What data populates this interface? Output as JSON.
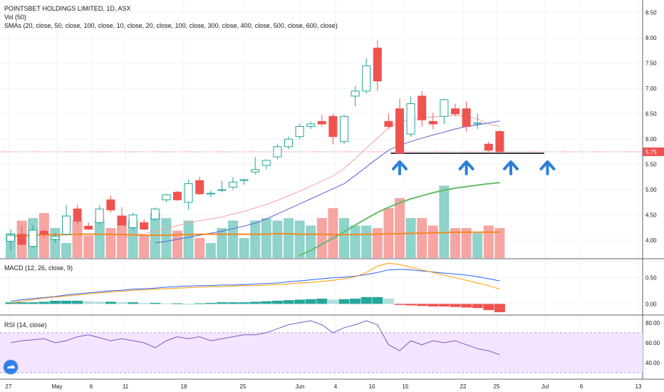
{
  "header": {
    "title": "POINTSBET HOLDINGS LIMITED, 1D, ASX",
    "vol_label": "Vol (50)",
    "sma_label": "SMAs (20, close, 50, close, 100, close, 10, close, 20, close, 100, close, 300, close, 400, close, 500, close, 600, close)"
  },
  "macd": {
    "label": "MACD (12, 26, close, 9)"
  },
  "rsi": {
    "label": "RSI (14, close)"
  },
  "colors": {
    "up": "#26a69a",
    "down": "#ef5350",
    "upVol": "#8fd3cb",
    "downVol": "#f6a5a3",
    "sma_pink": "#f4a0a0",
    "sma_blue": "#5b5fd6",
    "sma_green": "#66bb6a",
    "sma_orange": "#f5891f",
    "macd": "#2962ff",
    "signal": "#ff9800",
    "rsi": "#7e57c2",
    "arrow": "#2f7fd8",
    "support": "#131722"
  },
  "chart_data": [
    {
      "type": "candlestick",
      "title": "POINTSBET HOLDINGS LIMITED, 1D, ASX",
      "x_ticks": [
        "27",
        "May",
        "6",
        "11",
        "18",
        "25",
        "Jun",
        "4",
        "10",
        "15",
        "22",
        "25",
        "Jul",
        "6",
        "13"
      ],
      "y_ticks": [
        "4.00",
        "4.50",
        "5.00",
        "5.50",
        "6.00",
        "6.50",
        "7.00",
        "7.50",
        "8.00",
        "8.50"
      ],
      "ylim": [
        3.65,
        8.75
      ],
      "last_price_label": "5.75",
      "last_price": 5.75,
      "support_level": 5.72,
      "candles": [
        {
          "o": 3.98,
          "h": 4.22,
          "l": 3.8,
          "c": 4.1
        },
        {
          "o": 4.12,
          "h": 4.28,
          "l": 3.9,
          "c": 3.92
        },
        {
          "o": 3.88,
          "h": 4.3,
          "l": 3.85,
          "c": 4.2
        },
        {
          "o": 4.18,
          "h": 4.22,
          "l": 4.05,
          "c": 4.12
        },
        {
          "o": 4.02,
          "h": 4.15,
          "l": 3.95,
          "c": 4.08
        },
        {
          "o": 4.12,
          "h": 4.7,
          "l": 4.1,
          "c": 4.48
        },
        {
          "o": 4.62,
          "h": 4.7,
          "l": 4.3,
          "c": 4.38
        },
        {
          "o": 4.28,
          "h": 4.35,
          "l": 4.2,
          "c": 4.22
        },
        {
          "o": 4.35,
          "h": 4.7,
          "l": 4.3,
          "c": 4.62
        },
        {
          "o": 4.8,
          "h": 4.88,
          "l": 4.55,
          "c": 4.6
        },
        {
          "o": 4.48,
          "h": 4.65,
          "l": 4.3,
          "c": 4.3
        },
        {
          "o": 4.25,
          "h": 4.55,
          "l": 4.2,
          "c": 4.5
        },
        {
          "o": 4.35,
          "h": 4.42,
          "l": 4.2,
          "c": 4.22
        },
        {
          "o": 4.42,
          "h": 4.65,
          "l": 4.38,
          "c": 4.62
        },
        {
          "o": 4.8,
          "h": 4.92,
          "l": 4.75,
          "c": 4.9
        },
        {
          "o": 4.95,
          "h": 4.98,
          "l": 4.78,
          "c": 4.8
        },
        {
          "o": 4.75,
          "h": 5.2,
          "l": 4.6,
          "c": 5.12
        },
        {
          "o": 5.18,
          "h": 5.25,
          "l": 4.9,
          "c": 4.92
        },
        {
          "o": 4.92,
          "h": 4.98,
          "l": 4.85,
          "c": 4.93
        },
        {
          "o": 5.0,
          "h": 5.18,
          "l": 4.95,
          "c": 5.0
        },
        {
          "o": 5.05,
          "h": 5.25,
          "l": 5.0,
          "c": 5.15
        },
        {
          "o": 5.18,
          "h": 5.22,
          "l": 5.1,
          "c": 5.2
        },
        {
          "o": 5.35,
          "h": 5.65,
          "l": 5.3,
          "c": 5.4
        },
        {
          "o": 5.48,
          "h": 5.6,
          "l": 5.4,
          "c": 5.58
        },
        {
          "o": 5.65,
          "h": 5.9,
          "l": 5.6,
          "c": 5.85
        },
        {
          "o": 5.85,
          "h": 6.05,
          "l": 5.8,
          "c": 6.0
        },
        {
          "o": 6.05,
          "h": 6.3,
          "l": 6.0,
          "c": 6.25
        },
        {
          "o": 6.25,
          "h": 6.35,
          "l": 6.2,
          "c": 6.3
        },
        {
          "o": 6.35,
          "h": 6.48,
          "l": 6.25,
          "c": 6.3
        },
        {
          "o": 6.45,
          "h": 6.5,
          "l": 5.9,
          "c": 6.05
        },
        {
          "o": 5.95,
          "h": 6.48,
          "l": 5.9,
          "c": 6.45
        },
        {
          "o": 6.85,
          "h": 7.05,
          "l": 6.65,
          "c": 6.95
        },
        {
          "o": 6.95,
          "h": 7.6,
          "l": 6.9,
          "c": 7.45
        },
        {
          "o": 7.8,
          "h": 7.95,
          "l": 6.95,
          "c": 7.15
        },
        {
          "o": 6.35,
          "h": 6.5,
          "l": 6.2,
          "c": 6.25
        },
        {
          "o": 6.6,
          "h": 6.8,
          "l": 5.72,
          "c": 5.72
        },
        {
          "o": 6.1,
          "h": 6.85,
          "l": 6.05,
          "c": 6.7
        },
        {
          "o": 6.85,
          "h": 6.95,
          "l": 6.25,
          "c": 6.38
        },
        {
          "o": 6.35,
          "h": 6.52,
          "l": 6.2,
          "c": 6.3
        },
        {
          "o": 6.45,
          "h": 6.8,
          "l": 6.3,
          "c": 6.78
        },
        {
          "o": 6.6,
          "h": 6.7,
          "l": 6.45,
          "c": 6.5
        },
        {
          "o": 6.6,
          "h": 6.75,
          "l": 6.15,
          "c": 6.25
        },
        {
          "o": 6.3,
          "h": 6.5,
          "l": 6.2,
          "c": 6.32
        },
        {
          "o": 5.9,
          "h": 5.95,
          "l": 5.72,
          "c": 5.78
        },
        {
          "o": 6.15,
          "h": 6.18,
          "l": 5.72,
          "c": 5.75
        }
      ],
      "volume": [
        20,
        30,
        32,
        36,
        24,
        12,
        30,
        18,
        30,
        24,
        34,
        30,
        18,
        36,
        32,
        22,
        30,
        16,
        12,
        24,
        30,
        16,
        30,
        32,
        30,
        32,
        30,
        26,
        32,
        40,
        32,
        26,
        26,
        24,
        40,
        48,
        32,
        32,
        26,
        58,
        24,
        24,
        20,
        26,
        24
      ],
      "sma_series": [
        {
          "values": [
            null,
            null,
            null,
            null,
            null,
            null,
            null,
            null,
            null,
            null,
            4.05,
            4.09,
            4.13,
            4.18,
            4.23,
            4.29,
            4.34,
            4.39,
            4.42,
            4.46,
            4.52,
            4.57,
            4.64,
            4.71,
            4.79,
            4.88,
            4.97,
            5.07,
            5.17,
            5.27,
            5.42,
            5.62,
            5.82,
            6.02,
            6.22,
            6.35,
            6.38,
            6.42,
            6.44,
            6.45,
            6.47,
            6.46,
            6.4,
            6.3,
            6.25
          ]
        },
        {
          "values": [
            null,
            null,
            null,
            null,
            null,
            null,
            null,
            null,
            null,
            null,
            null,
            null,
            null,
            3.95,
            3.98,
            4.02,
            4.06,
            4.1,
            4.14,
            4.18,
            4.23,
            4.28,
            4.34,
            4.42,
            4.52,
            4.62,
            4.72,
            4.82,
            4.92,
            5.02,
            5.12,
            5.28,
            5.45,
            5.62,
            5.78,
            5.88,
            5.95,
            6.02,
            6.08,
            6.14,
            6.2,
            6.25,
            6.28,
            6.32,
            6.36
          ]
        },
        {
          "values": [
            null,
            null,
            null,
            null,
            null,
            null,
            null,
            null,
            null,
            null,
            null,
            null,
            null,
            null,
            null,
            null,
            null,
            null,
            null,
            null,
            null,
            null,
            null,
            null,
            null,
            null,
            3.7,
            3.8,
            3.92,
            4.04,
            4.17,
            4.3,
            4.43,
            4.55,
            4.65,
            4.74,
            4.82,
            4.88,
            4.94,
            4.99,
            5.03,
            5.06,
            5.09,
            5.12,
            5.14
          ]
        },
        {
          "values": [
            4.08,
            4.09,
            4.1,
            4.11,
            4.11,
            4.11,
            4.12,
            4.12,
            4.12,
            4.12,
            4.11,
            4.11,
            4.1,
            4.1,
            4.1,
            4.11,
            4.11,
            4.12,
            4.12,
            4.12,
            4.12,
            4.12,
            4.12,
            4.12,
            4.13,
            4.13,
            4.12,
            4.12,
            4.12,
            4.11,
            4.11,
            4.11,
            4.12,
            4.12,
            4.13,
            4.13,
            4.14,
            4.14,
            4.15,
            4.15,
            4.16,
            4.16,
            4.16,
            4.16,
            4.16
          ]
        }
      ]
    },
    {
      "type": "macd",
      "title": "MACD (12, 26, close, 9)",
      "y_ticks": [
        "0.50",
        "0.00"
      ],
      "ylim": [
        -0.2,
        0.85
      ],
      "macd": [
        0.05,
        0.08,
        0.1,
        0.12,
        0.14,
        0.17,
        0.19,
        0.21,
        0.23,
        0.25,
        0.26,
        0.28,
        0.29,
        0.3,
        0.32,
        0.33,
        0.34,
        0.35,
        0.35,
        0.36,
        0.36,
        0.37,
        0.38,
        0.39,
        0.4,
        0.42,
        0.44,
        0.46,
        0.48,
        0.5,
        0.51,
        0.53,
        0.56,
        0.6,
        0.65,
        0.66,
        0.65,
        0.63,
        0.61,
        0.59,
        0.57,
        0.55,
        0.52,
        0.48,
        0.44
      ],
      "signal": [
        0.02,
        0.05,
        0.08,
        0.11,
        0.13,
        0.15,
        0.17,
        0.19,
        0.21,
        0.23,
        0.24,
        0.26,
        0.27,
        0.28,
        0.29,
        0.3,
        0.31,
        0.32,
        0.33,
        0.33,
        0.34,
        0.35,
        0.35,
        0.36,
        0.37,
        0.38,
        0.4,
        0.41,
        0.43,
        0.45,
        0.48,
        0.52,
        0.6,
        0.72,
        0.78,
        0.75,
        0.7,
        0.65,
        0.6,
        0.55,
        0.5,
        0.45,
        0.4,
        0.35,
        0.28
      ],
      "histogram": [
        0.03,
        0.03,
        0.03,
        0.04,
        0.06,
        0.06,
        0.06,
        0.05,
        0.04,
        0.04,
        0.03,
        0.03,
        0.02,
        0.02,
        0.01,
        0.01,
        0.0,
        0.01,
        0.02,
        0.03,
        0.03,
        0.03,
        0.04,
        0.05,
        0.06,
        0.07,
        0.08,
        0.09,
        0.1,
        0.08,
        0.09,
        0.1,
        0.13,
        0.13,
        0.1,
        -0.02,
        -0.03,
        -0.04,
        -0.05,
        -0.05,
        -0.06,
        -0.07,
        -0.08,
        -0.12,
        -0.16
      ]
    },
    {
      "type": "rsi",
      "title": "RSI (14, close)",
      "y_ticks": [
        "80.00",
        "60.00",
        "40.00"
      ],
      "ylim": [
        25,
        87
      ],
      "band": [
        30,
        70
      ],
      "values": [
        60,
        62,
        63,
        64,
        60,
        62,
        66,
        68,
        65,
        62,
        64,
        62,
        60,
        55,
        62,
        66,
        64,
        66,
        62,
        64,
        66,
        68,
        68,
        70,
        74,
        78,
        80,
        82,
        78,
        70,
        75,
        78,
        82,
        78,
        58,
        52,
        62,
        58,
        62,
        60,
        62,
        58,
        54,
        52,
        48
      ]
    }
  ]
}
